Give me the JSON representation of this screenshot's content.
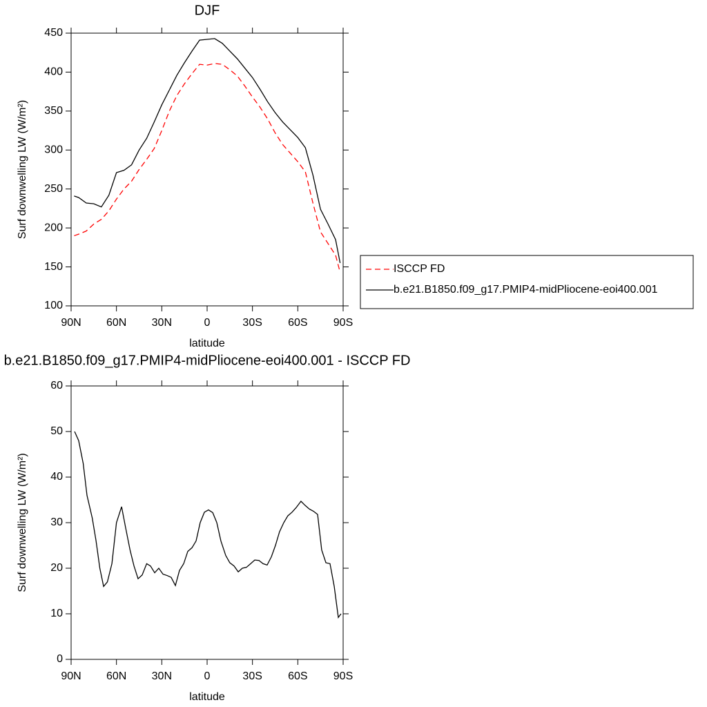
{
  "chart_data": [
    {
      "type": "line",
      "title": "DJF",
      "xlabel": "latitude",
      "ylabel": "Surf downwelling LW (W/m²)",
      "x": [
        88,
        85,
        80,
        75,
        70,
        65,
        60,
        55,
        50,
        45,
        40,
        35,
        30,
        25,
        20,
        15,
        10,
        5,
        0,
        -5,
        -10,
        -15,
        -20,
        -25,
        -30,
        -35,
        -40,
        -45,
        -50,
        -55,
        -60,
        -65,
        -70,
        -75,
        -80,
        -85,
        -88
      ],
      "series": [
        {
          "name": "ISCCP FD",
          "color": "#ff0000",
          "linestyle": "dashed",
          "values": [
            190,
            192,
            196,
            205,
            211,
            222,
            237,
            250,
            260,
            275,
            288,
            302,
            325,
            350,
            370,
            385,
            398,
            410,
            409,
            411,
            410,
            403,
            395,
            382,
            368,
            355,
            340,
            322,
            307,
            296,
            285,
            272,
            232,
            195,
            180,
            165,
            143
          ]
        },
        {
          "name": "b.e21.B1850.f09_g17.PMIP4-midPliocene-eoi400.001",
          "color": "#000000",
          "linestyle": "solid",
          "values": [
            241,
            239,
            232,
            231,
            227,
            242,
            271,
            274,
            281,
            300,
            315,
            336,
            358,
            377,
            396,
            412,
            427,
            441,
            442,
            443,
            437,
            427,
            417,
            405,
            393,
            378,
            362,
            348,
            336,
            326,
            316,
            303,
            268,
            224,
            205,
            185,
            155
          ]
        }
      ],
      "xlim": [
        90,
        -90
      ],
      "xticks": [
        {
          "value": 90,
          "label": "90N"
        },
        {
          "value": 60,
          "label": "60N"
        },
        {
          "value": 30,
          "label": "30N"
        },
        0,
        {
          "value": -30,
          "label": "30S"
        },
        {
          "value": -60,
          "label": "60S"
        },
        {
          "value": -90,
          "label": "90S"
        }
      ],
      "ylim": [
        100,
        450
      ],
      "yticks": [
        100,
        150,
        200,
        250,
        300,
        350,
        400,
        450
      ],
      "legend": "right"
    },
    {
      "type": "line",
      "title": "b.e21.B1850.f09_g17.PMIP4-midPliocene-eoi400.001 - ISCCP FD",
      "xlabel": "latitude",
      "ylabel": "Surf downwelling LW (W/m²)",
      "x": [
        87.7,
        85,
        82,
        79.5,
        76,
        73.5,
        71,
        68.5,
        66,
        63,
        60,
        56.6,
        54,
        51,
        48.4,
        45.7,
        43,
        40,
        37.5,
        34.7,
        32,
        29.2,
        26.5,
        23.8,
        21,
        18.3,
        15.5,
        12.8,
        10,
        7.3,
        4.6,
        1.8,
        -0.9,
        -3.7,
        -6.4,
        -9.1,
        -12.3,
        -15,
        -17.8,
        -20.6,
        -23.3,
        -26,
        -28.8,
        -31.5,
        -34.3,
        -37,
        -39.7,
        -42.5,
        -45.2,
        -47.9,
        -50.7,
        -53.4,
        -56.2,
        -58.9,
        -62.1,
        -64.8,
        -67.6,
        -70.4,
        -73.1,
        -75.8,
        -78.6,
        -81.3,
        -84.1,
        -86.8,
        -88.6
      ],
      "color": "#000000",
      "values": [
        50,
        48,
        43,
        36,
        31,
        26,
        20,
        16,
        17,
        21,
        30,
        33.5,
        29,
        24,
        20.5,
        17.7,
        18.5,
        21,
        20.5,
        19,
        20,
        18.7,
        18.4,
        18,
        16.2,
        19.5,
        21,
        23.7,
        24.5,
        26,
        30,
        32.3,
        32.8,
        32.2,
        30,
        26,
        22.8,
        21.2,
        20.5,
        19.2,
        20,
        20.2,
        21,
        21.8,
        21.7,
        21,
        20.7,
        22.5,
        25,
        28,
        30,
        31.5,
        32.3,
        33.3,
        34.7,
        33.8,
        33,
        32.5,
        31.8,
        24,
        21.2,
        21,
        16,
        9.2,
        10
      ],
      "xlim": [
        90,
        -90
      ],
      "xticks": [
        {
          "value": 90,
          "label": "90N"
        },
        {
          "value": 60,
          "label": "60N"
        },
        {
          "value": 30,
          "label": "30N"
        },
        0,
        {
          "value": -30,
          "label": "30S"
        },
        {
          "value": -60,
          "label": "60S"
        },
        {
          "value": -90,
          "label": "90S"
        }
      ],
      "ylim": [
        0,
        60
      ],
      "yticks": [
        0,
        10,
        20,
        30,
        40,
        50,
        60
      ]
    }
  ]
}
